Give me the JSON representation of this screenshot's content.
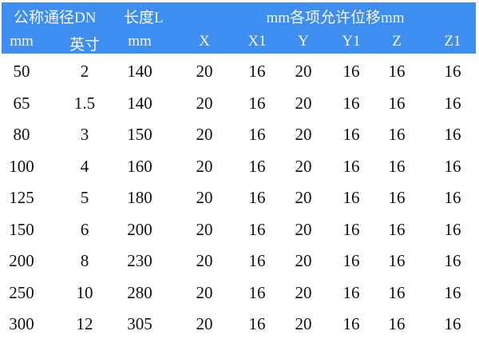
{
  "header": {
    "row1": {
      "dn": "公称通径DN",
      "length": "长度L",
      "displacement": "mm各项允许位移mm"
    },
    "row2": [
      "mm",
      "英寸",
      "mm",
      "X",
      "X1",
      "Y",
      "Y1",
      "Z",
      "Z1"
    ]
  },
  "header_color": "#3d8ef0",
  "rows": [
    [
      "50",
      "2",
      "140",
      "20",
      "16",
      "20",
      "16",
      "16",
      "16"
    ],
    [
      "65",
      "1.5",
      "140",
      "20",
      "16",
      "20",
      "16",
      "16",
      "16"
    ],
    [
      "80",
      "3",
      "150",
      "20",
      "16",
      "20",
      "16",
      "16",
      "16"
    ],
    [
      "100",
      "4",
      "160",
      "20",
      "16",
      "20",
      "16",
      "16",
      "16"
    ],
    [
      "125",
      "5",
      "180",
      "20",
      "16",
      "20",
      "16",
      "16",
      "16"
    ],
    [
      "150",
      "6",
      "200",
      "20",
      "16",
      "20",
      "16",
      "16",
      "16"
    ],
    [
      "200",
      "8",
      "230",
      "20",
      "16",
      "20",
      "16",
      "16",
      "16"
    ],
    [
      "250",
      "10",
      "280",
      "20",
      "16",
      "20",
      "16",
      "16",
      "16"
    ],
    [
      "300",
      "12",
      "305",
      "20",
      "16",
      "20",
      "16",
      "16",
      "16"
    ]
  ]
}
